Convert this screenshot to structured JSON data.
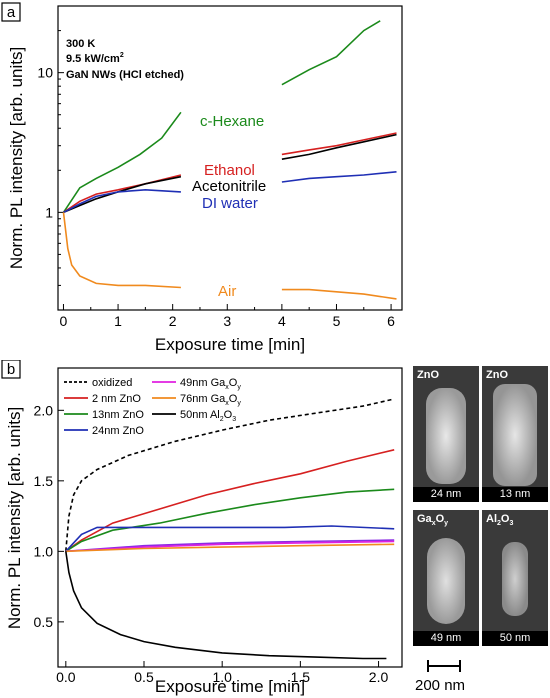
{
  "colors": {
    "green": "#1b8a1b",
    "red": "#d62020",
    "black": "#000000",
    "blue": "#1f2fb5",
    "orange": "#f08a1e",
    "magenta": "#e020e0",
    "violet": "#8a2be2"
  },
  "panel_a": {
    "letter": "a",
    "ann_line1": "300 K",
    "ann_line2_value": "9.5 kW/cm",
    "ann_line2_sup": "2",
    "ann_line3": "GaN NWs (HCl etched)"
  },
  "panel_b": {
    "letter": "b"
  },
  "chart_data": [
    {
      "type": "line",
      "xlabel": "Exposure time [min]",
      "ylabel": "Norm. PL intensity [arb. units]",
      "xlim": [
        -0.1,
        6.2
      ],
      "ylim": [
        0.2,
        30
      ],
      "yscale": "log",
      "xticks": [
        "0",
        "1",
        "2",
        "3",
        "4",
        "5",
        "6"
      ],
      "yticks": [
        "1",
        "10"
      ],
      "series": [
        {
          "name": "c-Hexane",
          "color": "#1b8a1b",
          "segments": [
            {
              "x": [
                0,
                0.3,
                0.6,
                1.0,
                1.4,
                1.8,
                2.15
              ],
              "y": [
                1.0,
                1.5,
                1.75,
                2.1,
                2.6,
                3.4,
                5.2
              ]
            },
            {
              "x": [
                4.0,
                4.5,
                5.0,
                5.5,
                5.8
              ],
              "y": [
                8.2,
                10.5,
                13.0,
                20.0,
                23.5
              ]
            }
          ]
        },
        {
          "name": "Ethanol",
          "color": "#d62020",
          "segments": [
            {
              "x": [
                0,
                0.3,
                0.6,
                1.0,
                1.5,
                2.15
              ],
              "y": [
                1.0,
                1.2,
                1.35,
                1.45,
                1.6,
                1.85
              ]
            },
            {
              "x": [
                4.0,
                4.5,
                5.0,
                5.5,
                6.1
              ],
              "y": [
                2.6,
                2.8,
                3.0,
                3.3,
                3.7
              ]
            }
          ]
        },
        {
          "name": "Acetonitrile",
          "color": "#000000",
          "segments": [
            {
              "x": [
                0,
                0.3,
                0.6,
                1.0,
                1.5,
                2.15
              ],
              "y": [
                1.0,
                1.12,
                1.25,
                1.4,
                1.6,
                1.8
              ]
            },
            {
              "x": [
                4.0,
                4.5,
                5.0,
                5.5,
                6.1
              ],
              "y": [
                2.4,
                2.6,
                2.9,
                3.2,
                3.6
              ]
            }
          ]
        },
        {
          "name": "DI water",
          "color": "#1f2fb5",
          "segments": [
            {
              "x": [
                0,
                0.3,
                0.6,
                1.0,
                1.5,
                2.15
              ],
              "y": [
                1.0,
                1.15,
                1.3,
                1.4,
                1.45,
                1.4
              ]
            },
            {
              "x": [
                4.0,
                4.5,
                5.0,
                5.5,
                6.1
              ],
              "y": [
                1.65,
                1.75,
                1.8,
                1.85,
                1.95
              ]
            }
          ]
        },
        {
          "name": "Air",
          "color": "#f08a1e",
          "segments": [
            {
              "x": [
                0,
                0.03,
                0.08,
                0.15,
                0.3,
                0.6,
                1.0,
                1.5,
                2.15
              ],
              "y": [
                1.0,
                0.8,
                0.55,
                0.42,
                0.35,
                0.31,
                0.3,
                0.3,
                0.29
              ]
            },
            {
              "x": [
                4.0,
                4.5,
                5.0,
                5.5,
                6.1
              ],
              "y": [
                0.28,
                0.28,
                0.27,
                0.26,
                0.24
              ]
            }
          ]
        }
      ]
    },
    {
      "type": "line",
      "xlabel": "Exposure time [min]",
      "ylabel": "Norm. PL intensity [arb. units]",
      "xlim": [
        -0.05,
        2.15
      ],
      "ylim": [
        0.18,
        2.3
      ],
      "xticks": [
        "0.0",
        "0.5",
        "1.0",
        "1.5",
        "2.0"
      ],
      "yticks": [
        "0.5",
        "1.0",
        "1.5",
        "2.0"
      ],
      "legend": [
        {
          "label": "oxidized",
          "color": "#000000",
          "dashed": true
        },
        {
          "label": "2 nm ZnO",
          "color": "#d62020"
        },
        {
          "label": "13nm ZnO",
          "color": "#1b8a1b"
        },
        {
          "label": "24nm ZnO",
          "color": "#1f2fb5"
        },
        {
          "label": "49nm Ga",
          "sub1": "x",
          "mid": "O",
          "sub2": "y",
          "color": "#e020e0"
        },
        {
          "label": "76nm Ga",
          "sub1": "x",
          "mid": "O",
          "sub2": "y",
          "color": "#f08a1e"
        },
        {
          "label": "50nm Al",
          "sub1": "2",
          "mid": "O",
          "sub2": "3",
          "color": "#000000"
        }
      ],
      "series": [
        {
          "color": "#000000",
          "dashed": true,
          "x": [
            0,
            0.02,
            0.05,
            0.1,
            0.2,
            0.4,
            0.7,
            1.0,
            1.3,
            1.6,
            1.9,
            2.1
          ],
          "y": [
            1.0,
            1.25,
            1.4,
            1.5,
            1.58,
            1.68,
            1.78,
            1.86,
            1.93,
            1.98,
            2.03,
            2.08
          ]
        },
        {
          "color": "#d62020",
          "x": [
            0,
            0.1,
            0.3,
            0.6,
            0.9,
            1.2,
            1.5,
            1.8,
            2.1
          ],
          "y": [
            1.0,
            1.08,
            1.2,
            1.3,
            1.4,
            1.48,
            1.55,
            1.64,
            1.72
          ]
        },
        {
          "color": "#1b8a1b",
          "x": [
            0,
            0.1,
            0.3,
            0.6,
            0.9,
            1.2,
            1.5,
            1.8,
            2.1
          ],
          "y": [
            1.0,
            1.07,
            1.15,
            1.2,
            1.27,
            1.33,
            1.38,
            1.42,
            1.44
          ]
        },
        {
          "color": "#1f2fb5",
          "x": [
            0,
            0.1,
            0.2,
            0.5,
            0.8,
            1.1,
            1.4,
            1.7,
            2.1
          ],
          "y": [
            1.0,
            1.12,
            1.17,
            1.17,
            1.17,
            1.17,
            1.17,
            1.18,
            1.16
          ]
        },
        {
          "color": "#8a2be2",
          "x": [
            0,
            0.5,
            1.0,
            1.5,
            2.1
          ],
          "y": [
            1.0,
            1.04,
            1.06,
            1.07,
            1.08
          ]
        },
        {
          "color": "#e020e0",
          "x": [
            0,
            0.5,
            1.0,
            1.5,
            2.1
          ],
          "y": [
            1.0,
            1.03,
            1.05,
            1.06,
            1.07
          ]
        },
        {
          "color": "#f08a1e",
          "x": [
            0,
            0.5,
            1.0,
            1.5,
            2.1
          ],
          "y": [
            1.0,
            1.02,
            1.03,
            1.04,
            1.05
          ]
        },
        {
          "color": "#000000",
          "x": [
            0,
            0.02,
            0.05,
            0.1,
            0.2,
            0.35,
            0.5,
            0.7,
            1.0,
            1.3,
            1.6,
            1.9,
            2.05
          ],
          "y": [
            1.0,
            0.85,
            0.72,
            0.6,
            0.49,
            0.41,
            0.36,
            0.32,
            0.28,
            0.26,
            0.25,
            0.24,
            0.24
          ]
        }
      ]
    }
  ],
  "sem": {
    "panels": [
      {
        "top": "ZnO",
        "bottom": "24 nm"
      },
      {
        "top": "ZnO",
        "bottom": "13 nm"
      },
      {
        "top": "Ga",
        "top_sub1": "x",
        "top_mid": "O",
        "top_sub2": "y",
        "bottom": "49 nm"
      },
      {
        "top": "Al",
        "top_sub1": "2",
        "top_mid": "O",
        "top_sub2": "3",
        "bottom": "50 nm"
      }
    ],
    "scalebar": "200 nm"
  }
}
